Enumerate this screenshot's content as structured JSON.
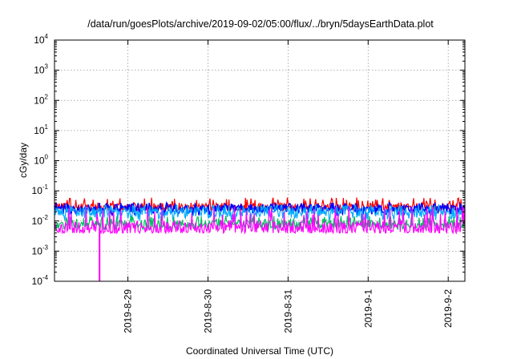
{
  "chart_data": {
    "type": "line",
    "title": "/data/run/goesPlots/archive/2019-09-02/05:00/flux/../bryn/5daysEarthData.plot",
    "xlabel": "Coordinated Universal Time (UTC)",
    "ylabel": "cGy/day",
    "yscale": "log",
    "ylim": [
      0.0001,
      10000
    ],
    "grid": true,
    "x_start": "2019-08-28T02:00",
    "x_end": "2019-09-02T05:00",
    "x_ticks": [
      "2019-8-29",
      "2019-8-30",
      "2019-8-31",
      "2019-9-1",
      "2019-9-2"
    ],
    "y_ticks": [
      {
        "base": "10",
        "exp": "-4",
        "value": 0.0001
      },
      {
        "base": "10",
        "exp": "-3",
        "value": 0.001
      },
      {
        "base": "10",
        "exp": "-2",
        "value": 0.01
      },
      {
        "base": "10",
        "exp": "-1",
        "value": 0.1
      },
      {
        "base": "10",
        "exp": "0",
        "value": 1
      },
      {
        "base": "10",
        "exp": "1",
        "value": 10
      },
      {
        "base": "10",
        "exp": "2",
        "value": 100
      },
      {
        "base": "10",
        "exp": "3",
        "value": 1000
      },
      {
        "base": "10",
        "exp": "4",
        "value": 10000
      }
    ],
    "series": [
      {
        "color": "#ff0000",
        "approx_level": 0.03,
        "approx_low": 0.02,
        "approx_high": 0.06
      },
      {
        "color": "#0000ff",
        "approx_level": 0.025,
        "approx_low": 0.015,
        "approx_high": 0.04
      },
      {
        "color": "#00aaff",
        "approx_level": 0.02,
        "approx_low": 0.01,
        "approx_high": 0.035
      },
      {
        "color": "#00c060",
        "approx_level": 0.008,
        "approx_low": 0.005,
        "approx_high": 0.015
      },
      {
        "color": "#ff00ff",
        "approx_level": 0.006,
        "approx_low": 0.004,
        "approx_high": 0.03,
        "dip": {
          "x": "2019-08-28T15:30",
          "value": 0.0001
        }
      }
    ]
  }
}
